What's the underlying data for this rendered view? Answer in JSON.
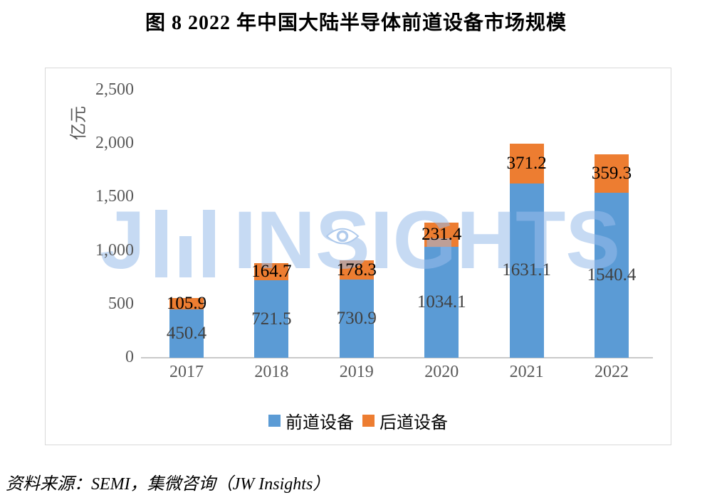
{
  "chart_data": {
    "type": "bar",
    "stacked": true,
    "title": "图 8  2022 年中国大陆半导体前道设备市场规模",
    "unit_label": "亿元",
    "categories": [
      "2017",
      "2018",
      "2019",
      "2020",
      "2021",
      "2022"
    ],
    "series": [
      {
        "name": "前道设备",
        "color": "#5B9BD5",
        "label_color": "#404040",
        "values": [
          450.4,
          721.5,
          730.9,
          1034.1,
          1631.1,
          1540.4
        ]
      },
      {
        "name": "后道设备",
        "color": "#ED7D31",
        "label_color": "#000000",
        "values": [
          105.9,
          164.7,
          178.3,
          231.4,
          371.2,
          359.3
        ]
      }
    ],
    "ylim": [
      0,
      2500
    ],
    "ytick_values": [
      0,
      500,
      1000,
      1500,
      2000,
      2500
    ],
    "ytick_labels": [
      "0",
      "500",
      "1,000",
      "1,500",
      "2,000",
      "2,500"
    ],
    "grid": false,
    "legend_position": "bottom",
    "source": "资料来源：SEMI，集微咨询（JW Insights）"
  },
  "watermark": {
    "logo_prefix": "J",
    "part1": "IN",
    "eye_letter": "S",
    "part2": "IGHTS"
  },
  "colors": {
    "front_end_blue": "#5B9BD5",
    "back_end_orange": "#ED7D31",
    "axis_text": "#595959",
    "watermark_blue": "#C9DBF4",
    "axis_line": "#C9C9C9"
  }
}
